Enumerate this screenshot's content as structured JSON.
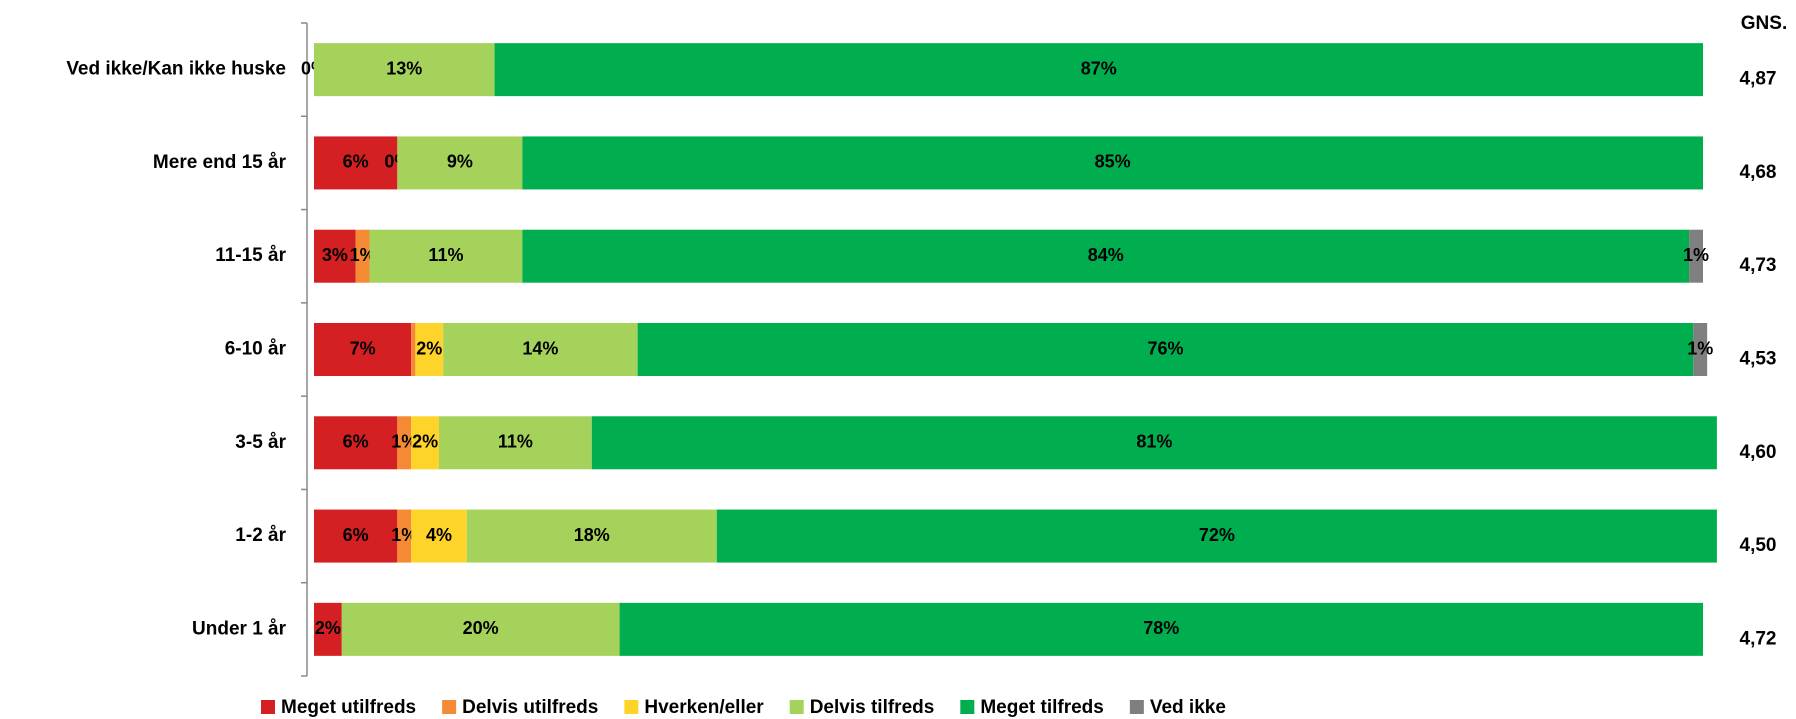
{
  "chart_data": {
    "type": "stacked_barh",
    "categories": [
      "Ved ikke/Kan ikke huske",
      "Mere end 15 år",
      "11-15 år",
      "6-10 år",
      "3-5 år",
      "1-2 år",
      "Under 1 år"
    ],
    "series": [
      {
        "name": "Meget utilfreds",
        "color": "#d42022",
        "values": [
          0,
          6,
          3,
          7,
          6,
          6,
          2
        ],
        "value_labels": [
          "0%",
          "6%",
          "3%",
          "7%",
          "6%",
          "6%",
          "2%"
        ]
      },
      {
        "name": "Delvis utilfreds",
        "color": "#f58a35",
        "values": [
          0,
          0,
          1,
          0.3,
          1,
          1,
          0
        ],
        "value_labels": [
          null,
          "0%",
          "1%",
          null,
          "1%",
          "1%",
          null
        ]
      },
      {
        "name": "Hverken/eller",
        "color": "#ffd42a",
        "values": [
          0,
          0,
          0,
          2,
          2,
          4,
          0
        ],
        "value_labels": [
          null,
          null,
          null,
          "2%",
          "2%",
          "4%",
          null
        ]
      },
      {
        "name": "Delvis tilfreds",
        "color": "#a5d25a",
        "values": [
          13,
          9,
          11,
          14,
          11,
          18,
          20
        ],
        "value_labels": [
          "13%",
          "9%",
          "11%",
          "14%",
          "11%",
          "18%",
          "20%"
        ]
      },
      {
        "name": "Meget tilfreds",
        "color": "#00ae4f",
        "values": [
          87,
          85,
          84,
          76,
          81,
          72,
          78
        ],
        "value_labels": [
          "87%",
          "85%",
          "84%",
          "76%",
          "81%",
          "72%",
          "78%"
        ]
      },
      {
        "name": "Ved ikke",
        "color": "#7f7f7f",
        "values": [
          0,
          0,
          1,
          1,
          0,
          0,
          0
        ],
        "value_labels": [
          null,
          null,
          "1%",
          "1%",
          null,
          null,
          null
        ]
      }
    ],
    "xlim": [
      0,
      100
    ],
    "gns_title": "GNS.",
    "gns_values": [
      4.87,
      4.68,
      4.73,
      4.53,
      4.6,
      4.5,
      4.72
    ],
    "gns_labels": [
      "4,87",
      "4,68",
      "4,73",
      "4,53",
      "4,60",
      "4,50",
      "4,72"
    ],
    "legend": "bottom"
  }
}
